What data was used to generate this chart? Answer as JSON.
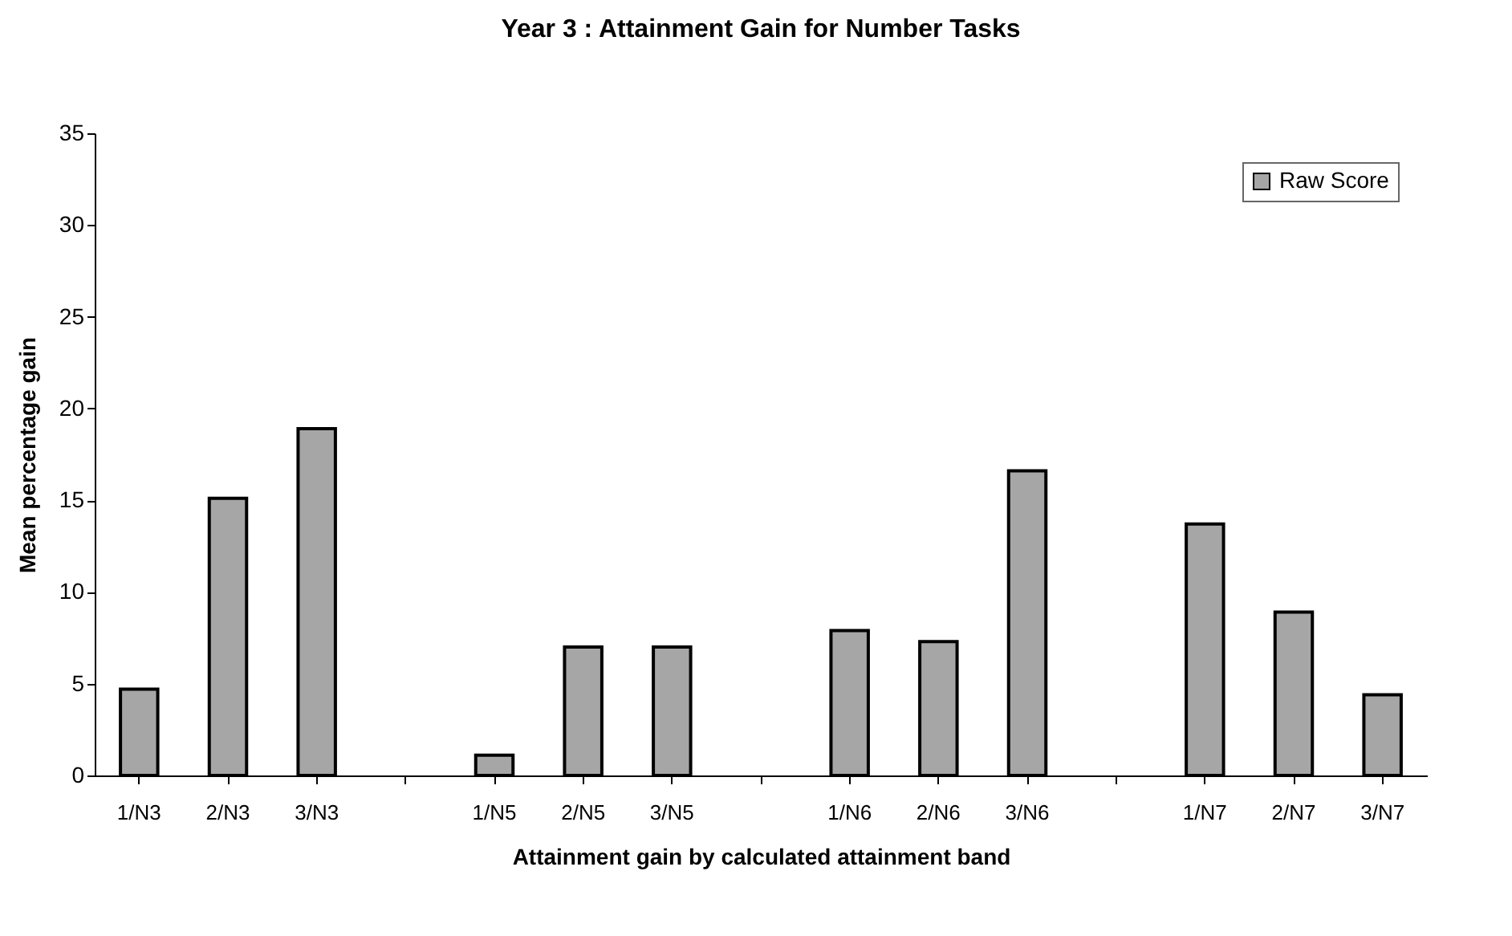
{
  "chart_data": {
    "type": "bar",
    "title": "Year 3 : Attainment Gain for Number Tasks",
    "xlabel": "Attainment gain by calculated attainment band",
    "ylabel": "Mean percentage gain",
    "categories": [
      "1/N3",
      "2/N3",
      "3/N3",
      null,
      "1/N5",
      "2/N5",
      "3/N5",
      null,
      "1/N6",
      "2/N6",
      "3/N6",
      null,
      "1/N7",
      "2/N7",
      "3/N7"
    ],
    "series": [
      {
        "name": "Raw Score",
        "color": "#a6a6a6",
        "values": [
          4.7,
          15.1,
          18.9,
          null,
          1.1,
          7.0,
          7.0,
          null,
          7.9,
          7.3,
          16.6,
          null,
          13.7,
          8.9,
          4.4
        ]
      }
    ],
    "ylim": [
      0,
      35
    ],
    "yticks": [
      0,
      5,
      10,
      15,
      20,
      25,
      30,
      35
    ],
    "grid": false,
    "legend": "top right"
  }
}
